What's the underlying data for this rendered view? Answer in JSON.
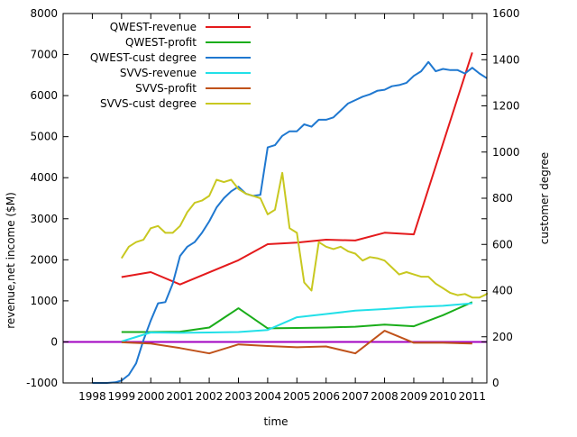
{
  "chart_data": {
    "type": "line",
    "xlabel": "time",
    "ylabel": "revenue,net income ($M)",
    "y2label": "customer degree",
    "xlim": [
      1997.0,
      2011.5
    ],
    "ylim": [
      -1000,
      8000
    ],
    "y2lim": [
      0,
      1600
    ],
    "x_ticks": [
      1998,
      1999,
      2000,
      2001,
      2002,
      2003,
      2004,
      2005,
      2006,
      2007,
      2008,
      2009,
      2010,
      2011
    ],
    "y_ticks": [
      -1000,
      0,
      1000,
      2000,
      3000,
      4000,
      5000,
      6000,
      7000,
      8000
    ],
    "y2_ticks": [
      0,
      200,
      400,
      600,
      800,
      1000,
      1200,
      1400,
      1600
    ],
    "legend_position": "top-left",
    "zero_line": {
      "y": 0,
      "color": "#a000c0"
    },
    "series": [
      {
        "name": "QWEST-revenue",
        "axis": "left",
        "color": "#e41a1c",
        "points": [
          [
            1999.0,
            1580
          ],
          [
            2000.0,
            1700
          ],
          [
            2001.0,
            1400
          ],
          [
            2003.0,
            1990
          ],
          [
            2004.0,
            2380
          ],
          [
            2005.0,
            2420
          ],
          [
            2006.0,
            2490
          ],
          [
            2007.0,
            2470
          ],
          [
            2008.0,
            2660
          ],
          [
            2009.0,
            2620
          ],
          [
            2011.0,
            7050
          ]
        ]
      },
      {
        "name": "QWEST-profit",
        "axis": "left",
        "color": "#1aad1a",
        "points": [
          [
            1999.0,
            240
          ],
          [
            2000.0,
            240
          ],
          [
            2001.0,
            250
          ],
          [
            2002.0,
            350
          ],
          [
            2003.0,
            820
          ],
          [
            2004.0,
            330
          ],
          [
            2005.0,
            340
          ],
          [
            2006.0,
            350
          ],
          [
            2007.0,
            370
          ],
          [
            2008.0,
            420
          ],
          [
            2009.0,
            380
          ],
          [
            2010.0,
            650
          ],
          [
            2011.0,
            970
          ]
        ]
      },
      {
        "name": "QWEST-cust degree",
        "axis": "right",
        "color": "#1f78d0",
        "points": [
          [
            1998.0,
            0
          ],
          [
            1998.5,
            0
          ],
          [
            1998.8,
            3
          ],
          [
            1999.0,
            10
          ],
          [
            1999.25,
            35
          ],
          [
            1999.5,
            85
          ],
          [
            1999.75,
            185
          ],
          [
            2000.0,
            270
          ],
          [
            2000.25,
            345
          ],
          [
            2000.5,
            350
          ],
          [
            2000.75,
            430
          ],
          [
            2001.0,
            550
          ],
          [
            2001.25,
            590
          ],
          [
            2001.5,
            610
          ],
          [
            2001.75,
            650
          ],
          [
            2002.0,
            700
          ],
          [
            2002.25,
            760
          ],
          [
            2002.5,
            800
          ],
          [
            2002.75,
            830
          ],
          [
            2003.0,
            850
          ],
          [
            2003.25,
            820
          ],
          [
            2003.5,
            810
          ],
          [
            2003.75,
            815
          ],
          [
            2004.0,
            1020
          ],
          [
            2004.25,
            1030
          ],
          [
            2004.5,
            1070
          ],
          [
            2004.75,
            1090
          ],
          [
            2005.0,
            1090
          ],
          [
            2005.25,
            1120
          ],
          [
            2005.5,
            1110
          ],
          [
            2005.75,
            1140
          ],
          [
            2006.0,
            1140
          ],
          [
            2006.25,
            1150
          ],
          [
            2006.5,
            1180
          ],
          [
            2006.75,
            1210
          ],
          [
            2007.0,
            1225
          ],
          [
            2007.25,
            1240
          ],
          [
            2007.5,
            1250
          ],
          [
            2007.75,
            1265
          ],
          [
            2008.0,
            1270
          ],
          [
            2008.25,
            1285
          ],
          [
            2008.5,
            1290
          ],
          [
            2008.75,
            1300
          ],
          [
            2009.0,
            1330
          ],
          [
            2009.25,
            1350
          ],
          [
            2009.5,
            1390
          ],
          [
            2009.75,
            1350
          ],
          [
            2010.0,
            1360
          ],
          [
            2010.25,
            1355
          ],
          [
            2010.5,
            1355
          ],
          [
            2010.75,
            1340
          ],
          [
            2011.0,
            1365
          ],
          [
            2011.25,
            1340
          ],
          [
            2011.5,
            1320
          ]
        ]
      },
      {
        "name": "SVVS-revenue",
        "axis": "left",
        "color": "#22e0e8",
        "points": [
          [
            1999.0,
            10
          ],
          [
            2000.0,
            230
          ],
          [
            2001.0,
            220
          ],
          [
            2002.0,
            230
          ],
          [
            2003.0,
            240
          ],
          [
            2004.0,
            290
          ],
          [
            2005.0,
            600
          ],
          [
            2006.0,
            680
          ],
          [
            2007.0,
            760
          ],
          [
            2008.0,
            800
          ],
          [
            2009.0,
            850
          ],
          [
            2010.0,
            880
          ],
          [
            2011.0,
            940
          ]
        ]
      },
      {
        "name": "SVVS-profit",
        "axis": "left",
        "color": "#c0521a",
        "points": [
          [
            1999.0,
            -10
          ],
          [
            2000.0,
            -40
          ],
          [
            2001.0,
            -150
          ],
          [
            2002.0,
            -280
          ],
          [
            2003.0,
            -60
          ],
          [
            2004.0,
            -100
          ],
          [
            2005.0,
            -130
          ],
          [
            2006.0,
            -110
          ],
          [
            2007.0,
            -280
          ],
          [
            2008.0,
            270
          ],
          [
            2009.0,
            -20
          ],
          [
            2010.0,
            -20
          ],
          [
            2011.0,
            -40
          ]
        ]
      },
      {
        "name": "SVVS-cust degree",
        "axis": "right",
        "color": "#c8c820",
        "points": [
          [
            1999.0,
            540
          ],
          [
            1999.25,
            590
          ],
          [
            1999.5,
            610
          ],
          [
            1999.75,
            620
          ],
          [
            2000.0,
            670
          ],
          [
            2000.25,
            680
          ],
          [
            2000.5,
            650
          ],
          [
            2000.75,
            650
          ],
          [
            2001.0,
            680
          ],
          [
            2001.25,
            740
          ],
          [
            2001.5,
            780
          ],
          [
            2001.75,
            790
          ],
          [
            2002.0,
            810
          ],
          [
            2002.25,
            880
          ],
          [
            2002.5,
            870
          ],
          [
            2002.75,
            880
          ],
          [
            2003.0,
            840
          ],
          [
            2003.25,
            820
          ],
          [
            2003.5,
            810
          ],
          [
            2003.75,
            800
          ],
          [
            2004.0,
            730
          ],
          [
            2004.25,
            750
          ],
          [
            2004.5,
            910
          ],
          [
            2004.75,
            670
          ],
          [
            2005.0,
            650
          ],
          [
            2005.25,
            435
          ],
          [
            2005.5,
            400
          ],
          [
            2005.75,
            610
          ],
          [
            2006.0,
            590
          ],
          [
            2006.25,
            580
          ],
          [
            2006.5,
            590
          ],
          [
            2006.75,
            570
          ],
          [
            2007.0,
            560
          ],
          [
            2007.25,
            530
          ],
          [
            2007.5,
            545
          ],
          [
            2007.75,
            540
          ],
          [
            2008.0,
            530
          ],
          [
            2008.25,
            500
          ],
          [
            2008.5,
            470
          ],
          [
            2008.75,
            480
          ],
          [
            2009.0,
            470
          ],
          [
            2009.25,
            460
          ],
          [
            2009.5,
            460
          ],
          [
            2009.75,
            430
          ],
          [
            2010.0,
            410
          ],
          [
            2010.25,
            390
          ],
          [
            2010.5,
            380
          ],
          [
            2010.75,
            385
          ],
          [
            2011.0,
            370
          ],
          [
            2011.25,
            370
          ],
          [
            2011.5,
            385
          ],
          [
            2011.75,
            390
          ]
        ]
      }
    ]
  }
}
